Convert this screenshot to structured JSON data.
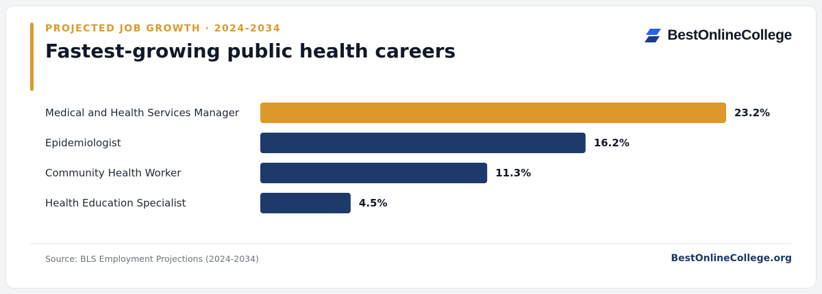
{
  "header": {
    "kicker": "PROJECTED JOB GROWTH · 2024-2034",
    "title": "Fastest-growing public health careers",
    "brand_name": "BestOnlineCollege",
    "brand_icon": "stacked-parallelogram-logo-icon"
  },
  "chart_data": {
    "type": "bar",
    "orientation": "horizontal",
    "categories": [
      "Medical and Health Services Manager",
      "Epidemiologist",
      "Community Health Worker",
      "Health Education Specialist"
    ],
    "values": [
      23.2,
      16.2,
      11.3,
      4.5
    ],
    "value_labels": [
      "23.2%",
      "16.2%",
      "11.3%",
      "4.5%"
    ],
    "bar_colors": [
      "#db9a28",
      "#1d3a6b",
      "#1d3a6b",
      "#1d3a6b"
    ],
    "grid": false,
    "xlim": [
      0,
      23.2
    ]
  },
  "footer": {
    "source": "Source: BLS Employment Projections (2024-2034)",
    "site": "BestOnlineCollege.org"
  },
  "colors": {
    "accent": "#db9a28",
    "navy": "#1d3a6b",
    "text": "#111827"
  }
}
